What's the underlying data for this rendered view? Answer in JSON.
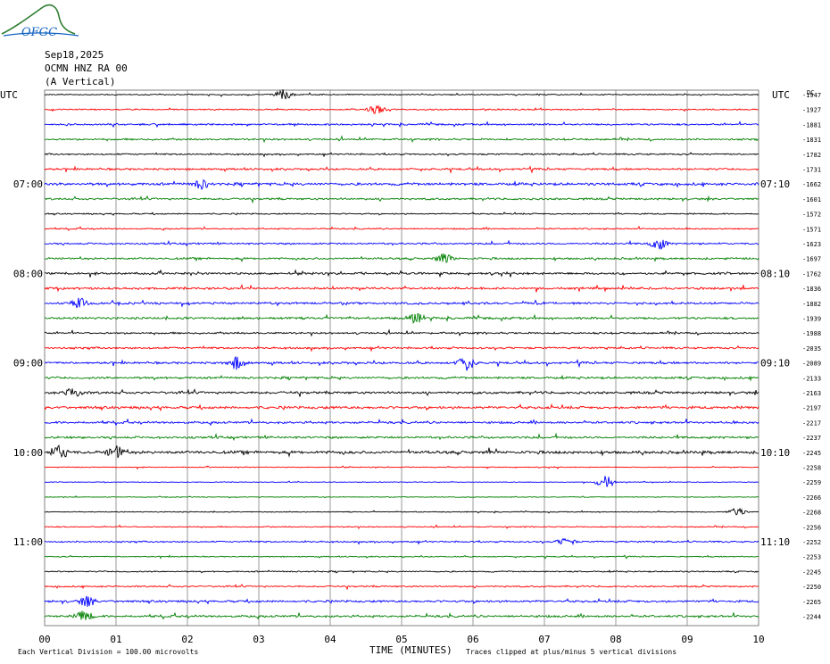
{
  "header": {
    "logo_text": "OFGC",
    "date": "Sep18,2025",
    "station": "OCMN HNZ RA 00",
    "component": "(A Vertical)",
    "left_tz": "UTC",
    "right_tz": "UTC",
    "offset_header": "DC"
  },
  "colors": {
    "cycle": [
      "#000000",
      "#ff0000",
      "#0000ff",
      "#007f00"
    ],
    "grid": "#808080"
  },
  "chart_data": {
    "type": "line",
    "title": "",
    "xlabel": "TIME (MINUTES)",
    "xlim": [
      0,
      10
    ],
    "x_ticks": [
      "00",
      "01",
      "02",
      "03",
      "04",
      "05",
      "06",
      "07",
      "08",
      "09",
      "10"
    ],
    "grid": true,
    "trace_count": 36,
    "left_hour_labels": [
      {
        "label": "07:00",
        "trace": 6
      },
      {
        "label": "08:00",
        "trace": 12
      },
      {
        "label": "09:00",
        "trace": 18
      },
      {
        "label": "10:00",
        "trace": 24
      },
      {
        "label": "11:00",
        "trace": 30
      }
    ],
    "right_hour_labels": [
      {
        "label": "07:10",
        "trace": 6
      },
      {
        "label": "08:10",
        "trace": 12
      },
      {
        "label": "09:10",
        "trace": 18
      },
      {
        "label": "10:10",
        "trace": 24
      },
      {
        "label": "11:10",
        "trace": 30
      }
    ],
    "dc_offsets": [
      "-1947",
      "-1927",
      "-1881",
      "-1831",
      "-1782",
      "-1731",
      "-1662",
      "-1601",
      "-1572",
      "-1571",
      "-1623",
      "-1697",
      "-1762",
      "-1836",
      "-1882",
      "-1939",
      "-1988",
      "-2035",
      "-2089",
      "-2133",
      "-2163",
      "-2197",
      "-2217",
      "-2237",
      "-2245",
      "-2258",
      "-2259",
      "-2266",
      "-2268",
      "-2256",
      "-2252",
      "-2253",
      "-2245",
      "-2250",
      "-2265",
      "-2244"
    ],
    "trace_noise": [
      0.5,
      0.6,
      0.8,
      0.8,
      0.7,
      0.9,
      1.2,
      0.9,
      0.6,
      0.6,
      0.8,
      0.9,
      1.0,
      1.0,
      1.0,
      1.0,
      0.8,
      0.9,
      1.0,
      1.0,
      1.1,
      1.2,
      1.0,
      1.0,
      1.3,
      0.4,
      0.3,
      0.3,
      0.4,
      0.5,
      0.7,
      0.5,
      0.6,
      0.7,
      1.0,
      1.0
    ],
    "events": [
      {
        "trace": 0,
        "x": 3.35,
        "amp": 6
      },
      {
        "trace": 1,
        "x": 4.65,
        "amp": 5
      },
      {
        "trace": 6,
        "x": 2.2,
        "amp": 5
      },
      {
        "trace": 10,
        "x": 8.6,
        "amp": 7
      },
      {
        "trace": 11,
        "x": 5.6,
        "amp": 6
      },
      {
        "trace": 14,
        "x": 0.5,
        "amp": 6
      },
      {
        "trace": 15,
        "x": 5.2,
        "amp": 6
      },
      {
        "trace": 18,
        "x": 2.7,
        "amp": 8
      },
      {
        "trace": 18,
        "x": 5.9,
        "amp": 9
      },
      {
        "trace": 20,
        "x": 0.4,
        "amp": 6
      },
      {
        "trace": 24,
        "x": 0.2,
        "amp": 8
      },
      {
        "trace": 24,
        "x": 1.0,
        "amp": 7
      },
      {
        "trace": 26,
        "x": 7.85,
        "amp": 8
      },
      {
        "trace": 28,
        "x": 9.7,
        "amp": 5
      },
      {
        "trace": 30,
        "x": 7.3,
        "amp": 5
      },
      {
        "trace": 34,
        "x": 0.6,
        "amp": 6
      },
      {
        "trace": 35,
        "x": 0.55,
        "amp": 6
      }
    ]
  },
  "footer": {
    "scale_note": "Each Vertical Division =  100.00 microvolts",
    "clip_note": "Traces clipped at plus/minus 5 vertical divisions"
  }
}
